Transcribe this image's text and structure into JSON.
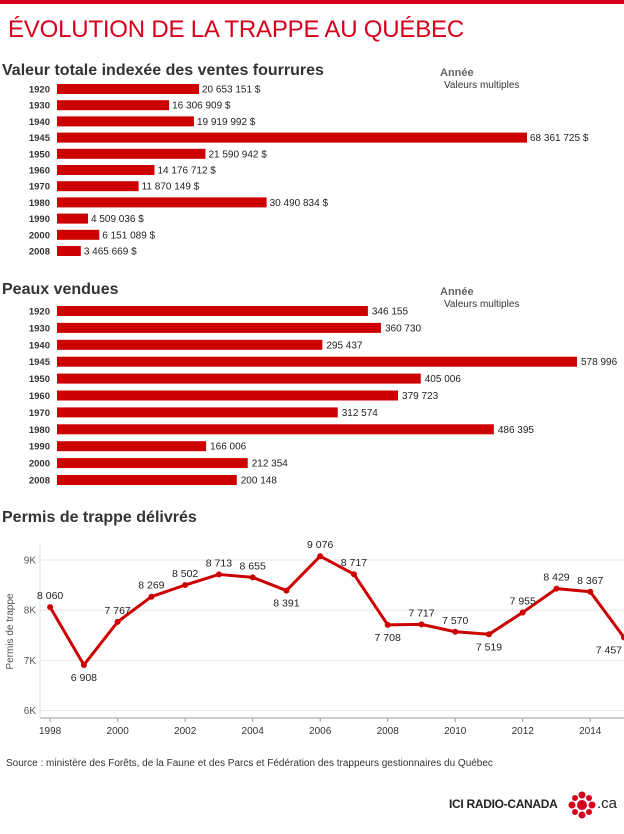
{
  "title": "ÉVOLUTION DE LA TRAPPE AU QUÉBEC",
  "colors": {
    "accent": "#d6001c",
    "bar": "#cc0000"
  },
  "source": "Source : ministère des Forêts, de la Faune et des Parcs et Fédération des trappeurs gestionnaires du Québec",
  "logo": {
    "text": "ICI RADIO-CANADA",
    "suffix": ".ca"
  },
  "chart_data": [
    {
      "type": "bar",
      "orientation": "horizontal",
      "title": "Valeur totale indexée des ventes fourrures",
      "legend_title": "Année",
      "legend_subtitle": "Valeurs multiples",
      "categories": [
        "1920",
        "1930",
        "1940",
        "1945",
        "1950",
        "1960",
        "1970",
        "1980",
        "1990",
        "2000",
        "2008"
      ],
      "values": [
        20653151,
        16306909,
        19919992,
        68361725,
        21590942,
        14176712,
        11870149,
        30490834,
        4509036,
        6151089,
        3465669
      ],
      "labels": [
        "20 653 151 $",
        "16 306 909 $",
        "19 919 992 $",
        "68 361 725 $",
        "21 590 942 $",
        "14 176 712 $",
        "11 870 149 $",
        "30 490 834 $",
        "4 509 036 $",
        "6 151 089 $",
        "3 465 669 $"
      ],
      "xlim": [
        0,
        68361725
      ]
    },
    {
      "type": "bar",
      "orientation": "horizontal",
      "title": "Peaux vendues",
      "legend_title": "Année",
      "legend_subtitle": "Valeurs multiples",
      "categories": [
        "1920",
        "1930",
        "1940",
        "1945",
        "1950",
        "1960",
        "1970",
        "1980",
        "1990",
        "2000",
        "2008"
      ],
      "values": [
        346155,
        360730,
        295437,
        578996,
        405006,
        379723,
        312574,
        486395,
        166006,
        212354,
        200148
      ],
      "labels": [
        "346 155",
        "360 730",
        "295 437",
        "578 996",
        "405 006",
        "379 723",
        "312 574",
        "486 395",
        "166 006",
        "212 354",
        "200 148"
      ],
      "xlim": [
        0,
        578996
      ]
    },
    {
      "type": "line",
      "title": "Permis de trappe délivrés",
      "ylabel": "Permis de trappe",
      "x": [
        1998,
        1999,
        2000,
        2001,
        2002,
        2003,
        2004,
        2005,
        2006,
        2007,
        2008,
        2009,
        2010,
        2011,
        2012,
        2013,
        2014,
        2015
      ],
      "values": [
        8060,
        6908,
        7767,
        8269,
        8502,
        8713,
        8655,
        8391,
        9076,
        8717,
        7708,
        7717,
        7570,
        7519,
        7955,
        8429,
        8367,
        7457
      ],
      "labels": [
        "8 060",
        "6 908",
        "7 767",
        "8 269",
        "8 502",
        "8 713",
        "8 655",
        "8 391",
        "9 076",
        "8 717",
        "7 708",
        "7 717",
        "7 570",
        "7 519",
        "7 955",
        "8 429",
        "8 367",
        "7 457"
      ],
      "x_ticks": [
        1998,
        2000,
        2002,
        2004,
        2006,
        2008,
        2010,
        2012,
        2014
      ],
      "x_tick_labels": [
        "1998",
        "2000",
        "2002",
        "2004",
        "2006",
        "2008",
        "2010",
        "2012",
        "2014"
      ],
      "y_ticks": [
        6000,
        7000,
        8000,
        9000
      ],
      "y_tick_labels": [
        "6K",
        "7K",
        "8K",
        "9K"
      ],
      "xlim": [
        1997.7,
        2015
      ],
      "ylim": [
        5850,
        9300
      ],
      "grid": true
    }
  ]
}
